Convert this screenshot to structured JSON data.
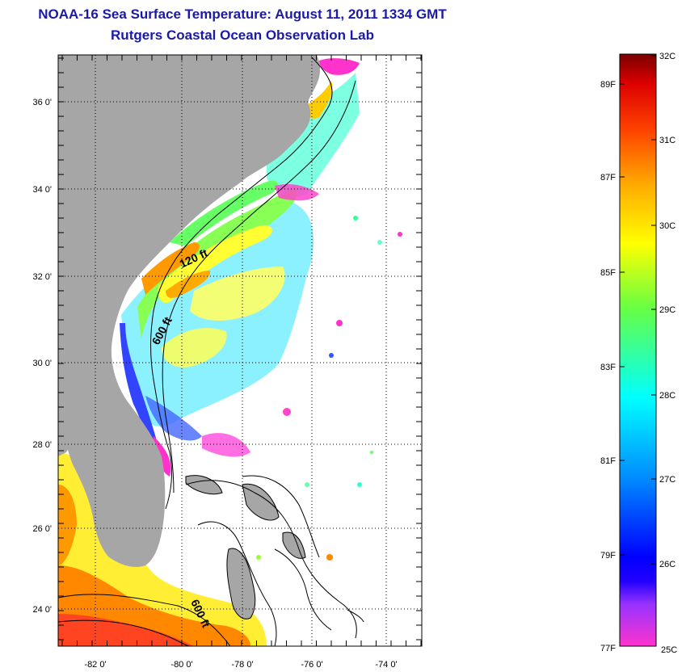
{
  "header": {
    "title": "NOAA-16 Sea Surface Temperature:  August 11, 2011 1334 GMT",
    "subtitle": "Rutgers Coastal Ocean Observation Lab"
  },
  "map": {
    "lon_range": [
      -83,
      -73
    ],
    "lat_range": [
      23,
      37
    ],
    "lon_ticks": [
      "-82 0'",
      "-80 0'",
      "-78 0'",
      "-76 0'",
      "-74 0'"
    ],
    "lat_ticks": [
      "36 0'",
      "34 0'",
      "32 0'",
      "30 0'",
      "28 0'",
      "26 0'",
      "24 0'"
    ],
    "contours": [
      "120 ft",
      "600 ft",
      "600 ft"
    ],
    "colors": {
      "land": "#a6a6a6",
      "ocean_no_data": "#ffffff"
    }
  },
  "colorbar": {
    "celsius": [
      "32C",
      "31C",
      "30C",
      "29C",
      "28C",
      "27C",
      "26C",
      "25C"
    ],
    "fahrenheit": [
      "89F",
      "87F",
      "85F",
      "83F",
      "81F",
      "79F",
      "77F"
    ],
    "range_c": [
      25,
      32
    ]
  }
}
